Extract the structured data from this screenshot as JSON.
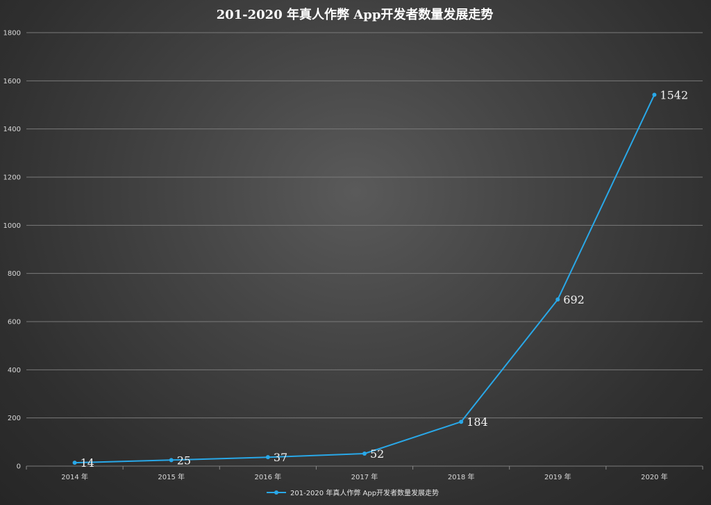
{
  "chart_data": {
    "type": "line",
    "title": "201-2020 年真人作弊 App开发者数量发展走势",
    "categories": [
      "2014 年",
      "2015 年",
      "2016 年",
      "2017 年",
      "2018 年",
      "2019 年",
      "2020 年"
    ],
    "series": [
      {
        "name": "201-2020 年真人作弊 App开发者数量发展走势",
        "values": [
          14,
          25,
          37,
          52,
          184,
          692,
          1542
        ],
        "color": "#29a8e8"
      }
    ],
    "ylim": [
      0,
      1800
    ],
    "yticks": [
      0,
      200,
      400,
      600,
      800,
      1000,
      1200,
      1400,
      1600,
      1800
    ],
    "grid": true,
    "legend": "bottom",
    "data_labels": true
  }
}
